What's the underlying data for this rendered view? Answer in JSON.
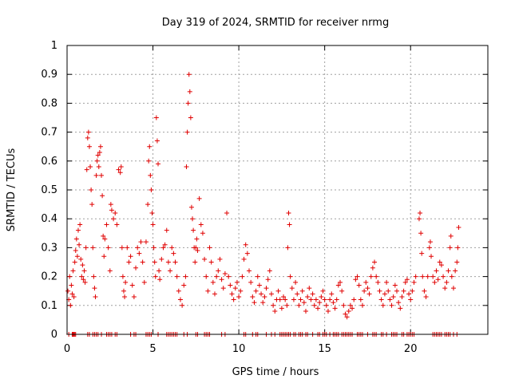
{
  "chart_data": {
    "type": "scatter",
    "title": "Day 319 of 2024, SRMTID for receiver nrmg",
    "xlabel": "GPS time / hours",
    "ylabel": "SRMTID / TECUs",
    "xlim": [
      0,
      24.5
    ],
    "ylim": [
      0,
      1
    ],
    "xticks": [
      0,
      5,
      10,
      15,
      20
    ],
    "xtick_labels": [
      "0",
      "5",
      "10",
      "15",
      "20"
    ],
    "yticks": [
      0,
      0.1,
      0.2,
      0.3,
      0.4,
      0.5,
      0.6,
      0.7,
      0.8,
      0.9,
      1
    ],
    "ytick_labels": [
      "0",
      "0.1",
      "0.2",
      "0.3",
      "0.4",
      "0.5",
      "0.6",
      "0.7",
      "0.8",
      "0.9",
      "1"
    ],
    "grid": true,
    "marker": "+",
    "series_color": "#e00000",
    "series": [
      {
        "name": "SRMTID",
        "points": [
          [
            0.05,
            0.15
          ],
          [
            0.1,
            0.12
          ],
          [
            0.15,
            0.2
          ],
          [
            0.2,
            0.1
          ],
          [
            0.25,
            0.17
          ],
          [
            0.3,
            0.14
          ],
          [
            0.35,
            0.22
          ],
          [
            0.4,
            0.13
          ],
          [
            0.45,
            0.25
          ],
          [
            0.5,
            0.29
          ],
          [
            0.55,
            0.33
          ],
          [
            0.6,
            0.27
          ],
          [
            0.65,
            0.36
          ],
          [
            0.7,
            0.31
          ],
          [
            0.75,
            0.38
          ],
          [
            0.8,
            0.26
          ],
          [
            0.85,
            0.2
          ],
          [
            0.9,
            0.24
          ],
          [
            0.95,
            0.19
          ],
          [
            1.0,
            0.22
          ],
          [
            1.05,
            0.18
          ],
          [
            1.1,
            0.3
          ],
          [
            1.15,
            0.57
          ],
          [
            1.2,
            0.68
          ],
          [
            1.25,
            0.7
          ],
          [
            1.3,
            0.65
          ],
          [
            1.35,
            0.58
          ],
          [
            1.4,
            0.5
          ],
          [
            1.45,
            0.45
          ],
          [
            1.5,
            0.3
          ],
          [
            1.55,
            0.2
          ],
          [
            1.6,
            0.16
          ],
          [
            1.65,
            0.13
          ],
          [
            1.7,
            0.55
          ],
          [
            1.75,
            0.6
          ],
          [
            1.8,
            0.62
          ],
          [
            1.85,
            0.58
          ],
          [
            1.9,
            0.63
          ],
          [
            1.95,
            0.65
          ],
          [
            2.0,
            0.55
          ],
          [
            2.05,
            0.48
          ],
          [
            2.1,
            0.34
          ],
          [
            2.15,
            0.27
          ],
          [
            2.2,
            0.33
          ],
          [
            2.3,
            0.38
          ],
          [
            2.4,
            0.3
          ],
          [
            2.5,
            0.22
          ],
          [
            2.55,
            0.45
          ],
          [
            2.6,
            0.43
          ],
          [
            2.7,
            0.4
          ],
          [
            2.8,
            0.42
          ],
          [
            2.9,
            0.38
          ],
          [
            3.0,
            0.57
          ],
          [
            3.1,
            0.56
          ],
          [
            3.15,
            0.58
          ],
          [
            3.2,
            0.3
          ],
          [
            3.25,
            0.2
          ],
          [
            3.3,
            0.15
          ],
          [
            3.35,
            0.13
          ],
          [
            3.4,
            0.18
          ],
          [
            3.5,
            0.3
          ],
          [
            3.6,
            0.25
          ],
          [
            3.7,
            0.27
          ],
          [
            3.8,
            0.17
          ],
          [
            3.9,
            0.13
          ],
          [
            4.0,
            0.23
          ],
          [
            4.1,
            0.3
          ],
          [
            4.2,
            0.28
          ],
          [
            4.3,
            0.32
          ],
          [
            4.4,
            0.25
          ],
          [
            4.5,
            0.18
          ],
          [
            4.6,
            0.32
          ],
          [
            4.7,
            0.45
          ],
          [
            4.75,
            0.6
          ],
          [
            4.8,
            0.65
          ],
          [
            4.85,
            0.55
          ],
          [
            4.9,
            0.5
          ],
          [
            4.95,
            0.42
          ],
          [
            5.0,
            0.38
          ],
          [
            5.05,
            0.3
          ],
          [
            5.1,
            0.25
          ],
          [
            5.15,
            0.2
          ],
          [
            5.2,
            0.75
          ],
          [
            5.25,
            0.67
          ],
          [
            5.3,
            0.59
          ],
          [
            5.35,
            0.22
          ],
          [
            5.4,
            0.19
          ],
          [
            5.5,
            0.26
          ],
          [
            5.6,
            0.3
          ],
          [
            5.7,
            0.31
          ],
          [
            5.8,
            0.36
          ],
          [
            5.9,
            0.25
          ],
          [
            6.0,
            0.22
          ],
          [
            6.1,
            0.3
          ],
          [
            6.2,
            0.28
          ],
          [
            6.3,
            0.25
          ],
          [
            6.4,
            0.2
          ],
          [
            6.5,
            0.15
          ],
          [
            6.6,
            0.12
          ],
          [
            6.7,
            0.1
          ],
          [
            6.8,
            0.17
          ],
          [
            6.9,
            0.2
          ],
          [
            6.95,
            0.58
          ],
          [
            7.0,
            0.7
          ],
          [
            7.05,
            0.8
          ],
          [
            7.1,
            0.9
          ],
          [
            7.15,
            0.84
          ],
          [
            7.2,
            0.75
          ],
          [
            7.25,
            0.44
          ],
          [
            7.3,
            0.4
          ],
          [
            7.35,
            0.36
          ],
          [
            7.4,
            0.3
          ],
          [
            7.45,
            0.25
          ],
          [
            7.5,
            0.3
          ],
          [
            7.55,
            0.33
          ],
          [
            7.6,
            0.29
          ],
          [
            7.7,
            0.47
          ],
          [
            7.8,
            0.38
          ],
          [
            7.9,
            0.35
          ],
          [
            8.0,
            0.26
          ],
          [
            8.1,
            0.2
          ],
          [
            8.2,
            0.15
          ],
          [
            8.3,
            0.3
          ],
          [
            8.4,
            0.25
          ],
          [
            8.5,
            0.18
          ],
          [
            8.6,
            0.14
          ],
          [
            8.7,
            0.2
          ],
          [
            8.8,
            0.22
          ],
          [
            8.9,
            0.26
          ],
          [
            9.0,
            0.19
          ],
          [
            9.1,
            0.16
          ],
          [
            9.2,
            0.21
          ],
          [
            9.3,
            0.42
          ],
          [
            9.4,
            0.2
          ],
          [
            9.5,
            0.17
          ],
          [
            9.6,
            0.14
          ],
          [
            9.7,
            0.12
          ],
          [
            9.8,
            0.16
          ],
          [
            9.9,
            0.18
          ],
          [
            10.0,
            0.13
          ],
          [
            10.1,
            0.15
          ],
          [
            10.2,
            0.2
          ],
          [
            10.3,
            0.26
          ],
          [
            10.4,
            0.31
          ],
          [
            10.5,
            0.28
          ],
          [
            10.6,
            0.22
          ],
          [
            10.7,
            0.18
          ],
          [
            10.8,
            0.13
          ],
          [
            10.9,
            0.11
          ],
          [
            11.0,
            0.15
          ],
          [
            11.1,
            0.2
          ],
          [
            11.2,
            0.17
          ],
          [
            11.3,
            0.14
          ],
          [
            11.4,
            0.11
          ],
          [
            11.5,
            0.13
          ],
          [
            11.6,
            0.16
          ],
          [
            11.7,
            0.19
          ],
          [
            11.8,
            0.22
          ],
          [
            11.9,
            0.14
          ],
          [
            12.0,
            0.1
          ],
          [
            12.1,
            0.08
          ],
          [
            12.2,
            0.12
          ],
          [
            12.3,
            0.15
          ],
          [
            12.4,
            0.12
          ],
          [
            12.5,
            0.09
          ],
          [
            12.6,
            0.13
          ],
          [
            12.7,
            0.12
          ],
          [
            12.8,
            0.1
          ],
          [
            12.85,
            0.3
          ],
          [
            12.9,
            0.42
          ],
          [
            12.95,
            0.38
          ],
          [
            13.0,
            0.2
          ],
          [
            13.1,
            0.16
          ],
          [
            13.2,
            0.12
          ],
          [
            13.3,
            0.18
          ],
          [
            13.4,
            0.14
          ],
          [
            13.5,
            0.1
          ],
          [
            13.6,
            0.12
          ],
          [
            13.7,
            0.15
          ],
          [
            13.8,
            0.11
          ],
          [
            13.9,
            0.08
          ],
          [
            14.0,
            0.13
          ],
          [
            14.1,
            0.16
          ],
          [
            14.2,
            0.12
          ],
          [
            14.3,
            0.14
          ],
          [
            14.4,
            0.1
          ],
          [
            14.5,
            0.12
          ],
          [
            14.6,
            0.09
          ],
          [
            14.7,
            0.11
          ],
          [
            14.8,
            0.13
          ],
          [
            14.9,
            0.15
          ],
          [
            15.0,
            0.12
          ],
          [
            15.1,
            0.1
          ],
          [
            15.2,
            0.08
          ],
          [
            15.3,
            0.12
          ],
          [
            15.4,
            0.14
          ],
          [
            15.5,
            0.11
          ],
          [
            15.6,
            0.09
          ],
          [
            15.7,
            0.12
          ],
          [
            15.8,
            0.17
          ],
          [
            15.9,
            0.18
          ],
          [
            16.0,
            0.15
          ],
          [
            16.1,
            0.1
          ],
          [
            16.2,
            0.07
          ],
          [
            16.3,
            0.06
          ],
          [
            16.4,
            0.08
          ],
          [
            16.5,
            0.1
          ],
          [
            16.6,
            0.09
          ],
          [
            16.7,
            0.12
          ],
          [
            16.8,
            0.19
          ],
          [
            16.9,
            0.2
          ],
          [
            17.0,
            0.17
          ],
          [
            17.1,
            0.12
          ],
          [
            17.2,
            0.1
          ],
          [
            17.3,
            0.15
          ],
          [
            17.4,
            0.18
          ],
          [
            17.5,
            0.16
          ],
          [
            17.6,
            0.14
          ],
          [
            17.7,
            0.2
          ],
          [
            17.8,
            0.23
          ],
          [
            17.9,
            0.25
          ],
          [
            18.0,
            0.2
          ],
          [
            18.1,
            0.18
          ],
          [
            18.2,
            0.15
          ],
          [
            18.3,
            0.12
          ],
          [
            18.4,
            0.1
          ],
          [
            18.5,
            0.14
          ],
          [
            18.6,
            0.18
          ],
          [
            18.7,
            0.15
          ],
          [
            18.8,
            0.12
          ],
          [
            18.9,
            0.1
          ],
          [
            19.0,
            0.13
          ],
          [
            19.1,
            0.17
          ],
          [
            19.2,
            0.15
          ],
          [
            19.3,
            0.11
          ],
          [
            19.4,
            0.09
          ],
          [
            19.5,
            0.13
          ],
          [
            19.6,
            0.15
          ],
          [
            19.7,
            0.18
          ],
          [
            19.8,
            0.19
          ],
          [
            19.9,
            0.14
          ],
          [
            20.0,
            0.12
          ],
          [
            20.1,
            0.15
          ],
          [
            20.2,
            0.18
          ],
          [
            20.3,
            0.2
          ],
          [
            20.5,
            0.4
          ],
          [
            20.55,
            0.42
          ],
          [
            20.6,
            0.35
          ],
          [
            20.65,
            0.28
          ],
          [
            20.7,
            0.2
          ],
          [
            20.8,
            0.15
          ],
          [
            20.9,
            0.13
          ],
          [
            21.0,
            0.2
          ],
          [
            21.1,
            0.3
          ],
          [
            21.15,
            0.32
          ],
          [
            21.2,
            0.27
          ],
          [
            21.3,
            0.2
          ],
          [
            21.4,
            0.18
          ],
          [
            21.5,
            0.22
          ],
          [
            21.6,
            0.19
          ],
          [
            21.7,
            0.25
          ],
          [
            21.8,
            0.24
          ],
          [
            21.9,
            0.2
          ],
          [
            22.0,
            0.16
          ],
          [
            22.1,
            0.18
          ],
          [
            22.2,
            0.22
          ],
          [
            22.3,
            0.3
          ],
          [
            22.35,
            0.34
          ],
          [
            22.4,
            0.2
          ],
          [
            22.5,
            0.16
          ],
          [
            22.6,
            0.22
          ],
          [
            22.7,
            0.25
          ],
          [
            22.75,
            0.3
          ],
          [
            22.8,
            0.37
          ]
        ],
        "zero_points": [
          0.1,
          0.3,
          0.35,
          0.4,
          0.45,
          0.5,
          1.2,
          1.3,
          1.5,
          1.6,
          1.7,
          1.8,
          2.0,
          2.3,
          2.4,
          2.5,
          2.6,
          2.8,
          2.9,
          3.7,
          3.9,
          4.0,
          4.6,
          4.7,
          4.8,
          4.9,
          5.3,
          5.8,
          5.9,
          6.0,
          6.1,
          6.2,
          6.3,
          6.4,
          6.8,
          7.0,
          7.5,
          7.6,
          8.0,
          8.1,
          8.2,
          8.3,
          9.0,
          9.2,
          10.3,
          10.4,
          10.8,
          11.0,
          11.1,
          11.6,
          11.9,
          12.1,
          12.4,
          12.5,
          12.6,
          12.7,
          12.8,
          12.9,
          13.0,
          13.2,
          13.3,
          13.5,
          13.6,
          13.7,
          13.9,
          14.0,
          14.3,
          14.6,
          14.7,
          14.9,
          15.0,
          15.1,
          15.3,
          15.5,
          15.6,
          15.7,
          15.8,
          16.0,
          16.1,
          16.2,
          16.3,
          16.4,
          16.5,
          16.6,
          16.9,
          17.0,
          17.1,
          17.2,
          17.5,
          17.8,
          17.9,
          18.0,
          18.3,
          18.4,
          18.6,
          18.9,
          19.0,
          19.1,
          19.2,
          19.5,
          19.6,
          19.8,
          19.9,
          20.0,
          20.1,
          20.2,
          21.3,
          21.4,
          21.5,
          21.6,
          21.7,
          21.8,
          22.0,
          22.1,
          22.2,
          22.3,
          22.5,
          22.7
        ]
      }
    ]
  }
}
